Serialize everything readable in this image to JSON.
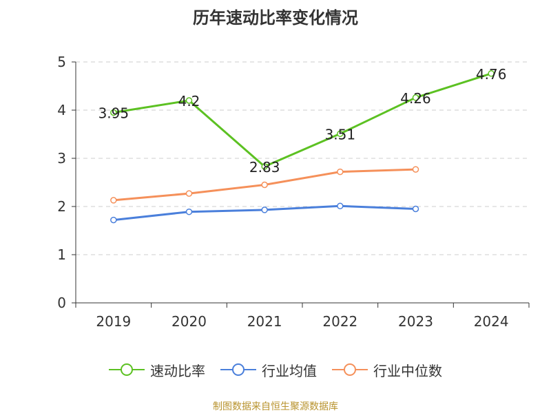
{
  "chart_data": {
    "type": "line",
    "title": "历年速动比率变化情况",
    "categories": [
      "2019",
      "2020",
      "2021",
      "2022",
      "2023",
      "2024"
    ],
    "ylim": [
      0,
      5
    ],
    "yticks": [
      0,
      1,
      2,
      3,
      4,
      5
    ],
    "grid": true,
    "legend_position": "bottom",
    "series": [
      {
        "name": "速动比率",
        "color": "#5cc122",
        "values": [
          3.95,
          4.2,
          2.83,
          3.51,
          4.26,
          4.76
        ],
        "labels": [
          "3.95",
          "4.2",
          "2.83",
          "3.51",
          "4.26",
          "4.76"
        ]
      },
      {
        "name": "行业均值",
        "color": "#4a7fdb",
        "values": [
          1.72,
          1.89,
          1.93,
          2.01,
          1.95,
          null
        ]
      },
      {
        "name": "行业中位数",
        "color": "#f5905a",
        "values": [
          2.13,
          2.27,
          2.45,
          2.72,
          2.77,
          null
        ]
      }
    ],
    "source": "制图数据来自恒生聚源数据库"
  }
}
